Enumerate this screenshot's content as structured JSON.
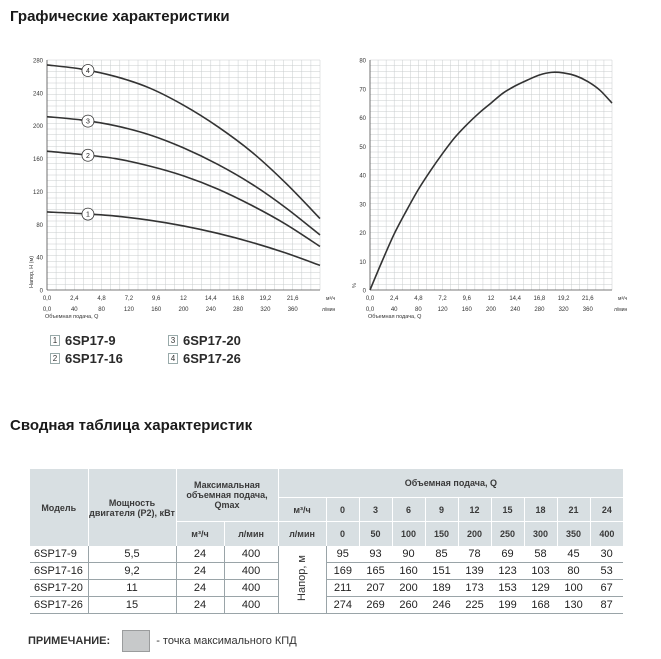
{
  "page": {
    "title_charts": "Графические характеристики",
    "title_table": "Сводная таблица характеристик"
  },
  "legend": {
    "items": [
      {
        "num": "1",
        "label": "6SP17-9"
      },
      {
        "num": "2",
        "label": "6SP17-16"
      },
      {
        "num": "3",
        "label": "6SP17-20"
      },
      {
        "num": "4",
        "label": "6SP17-26"
      }
    ]
  },
  "chart_data": [
    {
      "type": "line",
      "y_axis_label": "Напор, Н (м)",
      "x_axis_label": "Объемная подача, Q",
      "x_unit_top": "м³/ч",
      "x_unit_bottom": "л/мин",
      "x_ticks_top": [
        "0,0",
        "2,4",
        "4,8",
        "7,2",
        "9,6",
        "12",
        "14,4",
        "16,8",
        "19,2",
        "21,6"
      ],
      "x_ticks_bottom": [
        "0,0",
        "40",
        "80",
        "120",
        "160",
        "200",
        "240",
        "280",
        "320",
        "360"
      ],
      "y_ticks": [
        "0",
        "40",
        "80",
        "120",
        "160",
        "200",
        "240",
        "280"
      ],
      "xlim": [
        0,
        24
      ],
      "ylim": [
        0,
        280
      ],
      "grid": true,
      "series": [
        {
          "marker": "1",
          "x": [
            0,
            3,
            6,
            9,
            12,
            15,
            18,
            21,
            24
          ],
          "y": [
            95,
            93,
            90,
            85,
            78,
            69,
            58,
            45,
            30
          ]
        },
        {
          "marker": "2",
          "x": [
            0,
            3,
            6,
            9,
            12,
            15,
            18,
            21,
            24
          ],
          "y": [
            169,
            165,
            160,
            151,
            139,
            123,
            103,
            80,
            53
          ]
        },
        {
          "marker": "3",
          "x": [
            0,
            3,
            6,
            9,
            12,
            15,
            18,
            21,
            24
          ],
          "y": [
            211,
            207,
            200,
            189,
            173,
            153,
            129,
            100,
            67
          ]
        },
        {
          "marker": "4",
          "x": [
            0,
            3,
            6,
            9,
            12,
            15,
            18,
            21,
            24
          ],
          "y": [
            274,
            269,
            260,
            246,
            225,
            199,
            168,
            130,
            87
          ]
        }
      ]
    },
    {
      "type": "line",
      "y_axis_label": "%",
      "x_axis_label": "Объемная подача, Q",
      "x_unit_top": "м³/ч",
      "x_unit_bottom": "л/мин",
      "x_ticks_top": [
        "0,0",
        "2,4",
        "4,8",
        "7,2",
        "9,6",
        "12",
        "14,4",
        "16,8",
        "19,2",
        "21,6"
      ],
      "x_ticks_bottom": [
        "0,0",
        "40",
        "80",
        "120",
        "160",
        "200",
        "240",
        "280",
        "320",
        "360"
      ],
      "y_ticks": [
        "0",
        "10",
        "20",
        "30",
        "40",
        "50",
        "60",
        "70",
        "80"
      ],
      "xlim": [
        0,
        24
      ],
      "ylim": [
        0,
        80
      ],
      "grid": true,
      "series": [
        {
          "x": [
            0,
            1.2,
            2.4,
            3.6,
            4.8,
            6,
            7.2,
            8.4,
            9.6,
            10.8,
            12,
            13.2,
            14.4,
            15.6,
            16.8,
            18,
            19.2,
            20.4,
            21.6,
            22.8,
            24
          ],
          "y": [
            0,
            10,
            19.5,
            27.5,
            35,
            41.5,
            47.5,
            53,
            57.5,
            61.5,
            65,
            68.5,
            71,
            73,
            74.8,
            75.7,
            75.5,
            74.5,
            72.5,
            69.5,
            65
          ]
        }
      ]
    }
  ],
  "table": {
    "headers": {
      "model": "Модель",
      "power": "Мощность двигателя (Р2), кВт",
      "qmax": "Максимальная объемная подача, Qmax",
      "flow": "Объемная подача, Q",
      "unit_m3h": "м³/ч",
      "unit_lmin": "л/мин",
      "head_label": "Напор, м"
    },
    "q_m3h": [
      "0",
      "3",
      "6",
      "9",
      "12",
      "15",
      "18",
      "21",
      "24"
    ],
    "q_lmin": [
      "0",
      "50",
      "100",
      "150",
      "200",
      "250",
      "300",
      "350",
      "400"
    ],
    "rows": [
      {
        "model": "6SP17-9",
        "power": "5,5",
        "qmax_m3h": "24",
        "qmax_lmin": "400",
        "heads": [
          "95",
          "93",
          "90",
          "85",
          "78",
          "69",
          "58",
          "45",
          "30"
        ]
      },
      {
        "model": "6SP17-16",
        "power": "9,2",
        "qmax_m3h": "24",
        "qmax_lmin": "400",
        "heads": [
          "169",
          "165",
          "160",
          "151",
          "139",
          "123",
          "103",
          "80",
          "53"
        ]
      },
      {
        "model": "6SP17-20",
        "power": "11",
        "qmax_m3h": "24",
        "qmax_lmin": "400",
        "heads": [
          "211",
          "207",
          "200",
          "189",
          "173",
          "153",
          "129",
          "100",
          "67"
        ]
      },
      {
        "model": "6SP17-26",
        "power": "15",
        "qmax_m3h": "24",
        "qmax_lmin": "400",
        "heads": [
          "274",
          "269",
          "260",
          "246",
          "225",
          "199",
          "168",
          "130",
          "87"
        ]
      }
    ]
  },
  "note": {
    "label": "ПРИМЕЧАНИЕ:",
    "text": "- точка максимального КПД"
  },
  "colors": {
    "curve": "#333333",
    "grid": "#c8ccce",
    "header_bg": "#d8dfe2",
    "swatch": "#c7c9ca"
  }
}
